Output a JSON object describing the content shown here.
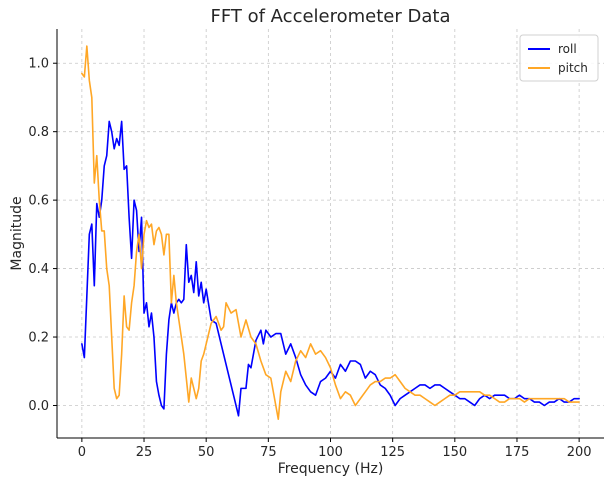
{
  "chart_data": {
    "type": "line",
    "title": "FFT of Accelerometer Data",
    "xlabel": "Frequency (Hz)",
    "ylabel": "Magnitude",
    "xlim": [
      -10,
      210
    ],
    "ylim": [
      -0.095,
      1.1
    ],
    "xticks": [
      0,
      25,
      50,
      75,
      100,
      125,
      150,
      175,
      200
    ],
    "xtick_labels": [
      "0",
      "25",
      "50",
      "75",
      "100",
      "125",
      "150",
      "175",
      "200"
    ],
    "yticks": [
      0.0,
      0.2,
      0.4,
      0.6,
      0.8,
      1.0
    ],
    "ytick_labels": [
      "0.0",
      "0.2",
      "0.4",
      "0.6",
      "0.8",
      "1.0"
    ],
    "grid": true,
    "legend_position": "top-right",
    "series": [
      {
        "name": "roll",
        "color": "#0000ff",
        "x": [
          0,
          1,
          2,
          3,
          4,
          5,
          6,
          7,
          8,
          9,
          10,
          11,
          12,
          13,
          14,
          15,
          16,
          17,
          18,
          19,
          20,
          21,
          22,
          23,
          24,
          25,
          26,
          27,
          28,
          29,
          30,
          31,
          32,
          33,
          34,
          35,
          36,
          37,
          38,
          39,
          40,
          41,
          42,
          43,
          44,
          45,
          46,
          47,
          48,
          49,
          50,
          52,
          54,
          56,
          58,
          60,
          62,
          63,
          64,
          66,
          67,
          68,
          70,
          72,
          73,
          74,
          76,
          78,
          80,
          82,
          84,
          86,
          88,
          90,
          92,
          94,
          96,
          98,
          100,
          102,
          104,
          106,
          108,
          110,
          112,
          114,
          116,
          118,
          120,
          122,
          124,
          126,
          128,
          130,
          132,
          134,
          136,
          138,
          140,
          142,
          144,
          146,
          148,
          150,
          152,
          154,
          156,
          158,
          160,
          162,
          164,
          166,
          168,
          170,
          172,
          174,
          176,
          178,
          180,
          182,
          184,
          186,
          188,
          190,
          192,
          194,
          196,
          198,
          200
        ],
        "y": [
          0.18,
          0.14,
          0.32,
          0.5,
          0.53,
          0.35,
          0.59,
          0.55,
          0.6,
          0.7,
          0.73,
          0.83,
          0.8,
          0.75,
          0.78,
          0.76,
          0.83,
          0.69,
          0.7,
          0.55,
          0.43,
          0.6,
          0.57,
          0.45,
          0.55,
          0.27,
          0.3,
          0.23,
          0.27,
          0.2,
          0.07,
          0.03,
          0.0,
          -0.01,
          0.15,
          0.25,
          0.3,
          0.27,
          0.3,
          0.31,
          0.3,
          0.31,
          0.47,
          0.36,
          0.38,
          0.33,
          0.42,
          0.32,
          0.36,
          0.3,
          0.34,
          0.25,
          0.24,
          0.18,
          0.12,
          0.06,
          0.0,
          -0.03,
          0.05,
          0.05,
          0.12,
          0.11,
          0.19,
          0.22,
          0.18,
          0.22,
          0.2,
          0.21,
          0.21,
          0.15,
          0.18,
          0.14,
          0.09,
          0.06,
          0.04,
          0.03,
          0.07,
          0.08,
          0.1,
          0.08,
          0.12,
          0.1,
          0.13,
          0.13,
          0.12,
          0.08,
          0.1,
          0.09,
          0.06,
          0.05,
          0.03,
          0.0,
          0.02,
          0.03,
          0.04,
          0.05,
          0.06,
          0.06,
          0.05,
          0.06,
          0.06,
          0.05,
          0.04,
          0.03,
          0.02,
          0.02,
          0.01,
          0.0,
          0.02,
          0.03,
          0.02,
          0.03,
          0.03,
          0.03,
          0.02,
          0.02,
          0.03,
          0.02,
          0.02,
          0.01,
          0.01,
          0.0,
          0.01,
          0.01,
          0.02,
          0.01,
          0.01,
          0.02,
          0.02
        ]
      },
      {
        "name": "pitch",
        "color": "#ffa726",
        "x": [
          0,
          1,
          2,
          3,
          4,
          5,
          6,
          7,
          8,
          9,
          10,
          11,
          12,
          13,
          14,
          15,
          16,
          17,
          18,
          19,
          20,
          21,
          22,
          23,
          24,
          25,
          26,
          27,
          28,
          29,
          30,
          31,
          32,
          33,
          34,
          35,
          36,
          37,
          38,
          39,
          40,
          41,
          42,
          43,
          44,
          45,
          46,
          47,
          48,
          49,
          50,
          52,
          54,
          56,
          57,
          58,
          60,
          62,
          64,
          66,
          68,
          70,
          72,
          74,
          76,
          78,
          79,
          80,
          82,
          84,
          86,
          88,
          90,
          92,
          94,
          96,
          98,
          100,
          102,
          104,
          106,
          108,
          110,
          112,
          114,
          116,
          118,
          120,
          122,
          124,
          126,
          128,
          130,
          132,
          134,
          136,
          138,
          140,
          142,
          144,
          146,
          148,
          150,
          152,
          154,
          156,
          158,
          160,
          162,
          164,
          166,
          168,
          170,
          172,
          174,
          176,
          178,
          180,
          182,
          184,
          186,
          188,
          190,
          192,
          194,
          196,
          198,
          200
        ],
        "y": [
          0.97,
          0.96,
          1.05,
          0.95,
          0.9,
          0.65,
          0.73,
          0.6,
          0.51,
          0.51,
          0.4,
          0.35,
          0.2,
          0.05,
          0.02,
          0.03,
          0.15,
          0.32,
          0.23,
          0.22,
          0.3,
          0.35,
          0.45,
          0.5,
          0.4,
          0.5,
          0.54,
          0.52,
          0.53,
          0.47,
          0.51,
          0.52,
          0.5,
          0.44,
          0.5,
          0.5,
          0.3,
          0.38,
          0.3,
          0.25,
          0.2,
          0.15,
          0.08,
          0.01,
          0.08,
          0.05,
          0.02,
          0.05,
          0.13,
          0.15,
          0.18,
          0.24,
          0.26,
          0.22,
          0.23,
          0.3,
          0.27,
          0.28,
          0.2,
          0.25,
          0.2,
          0.18,
          0.13,
          0.09,
          0.08,
          0.0,
          -0.04,
          0.04,
          0.1,
          0.07,
          0.13,
          0.16,
          0.14,
          0.18,
          0.15,
          0.16,
          0.14,
          0.11,
          0.06,
          0.02,
          0.04,
          0.03,
          0.0,
          0.02,
          0.04,
          0.06,
          0.07,
          0.07,
          0.08,
          0.08,
          0.09,
          0.07,
          0.05,
          0.04,
          0.03,
          0.03,
          0.02,
          0.01,
          0.0,
          0.01,
          0.02,
          0.03,
          0.03,
          0.04,
          0.04,
          0.04,
          0.04,
          0.04,
          0.03,
          0.03,
          0.02,
          0.01,
          0.01,
          0.02,
          0.02,
          0.02,
          0.01,
          0.02,
          0.02,
          0.02,
          0.02,
          0.02,
          0.02,
          0.02,
          0.02,
          0.01,
          0.01,
          0.01
        ]
      }
    ]
  }
}
